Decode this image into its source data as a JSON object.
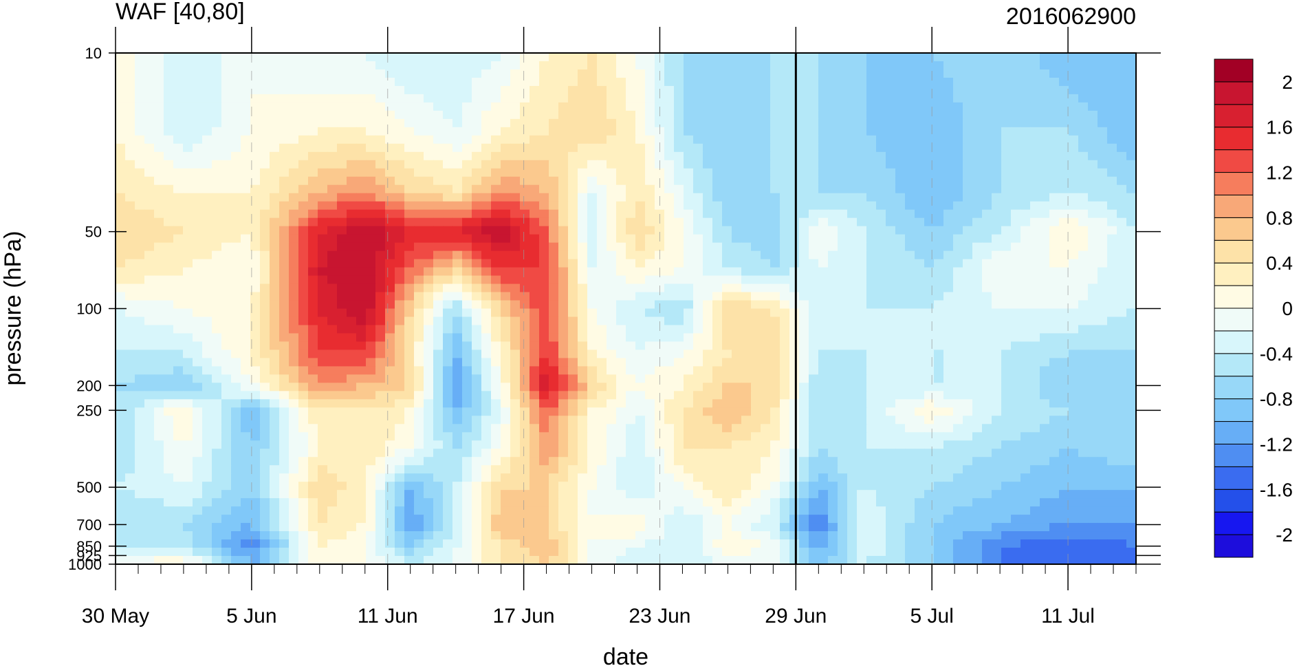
{
  "chart_data": {
    "type": "heatmap",
    "title": "WAF [40,80]",
    "subtitle": "2016062900",
    "xlabel": "date",
    "ylabel": "pressure (hPa)",
    "y_scale": "log",
    "y_reversed": true,
    "xlim": [
      "2016-05-30",
      "2016-07-14"
    ],
    "ylim": [
      1000,
      10
    ],
    "x_tick_labels": [
      "30 May",
      "5 Jun",
      "11 Jun",
      "17 Jun",
      "23 Jun",
      "29 Jun",
      "5 Jul",
      "11 Jul"
    ],
    "x_tick_dates": [
      "2016-05-30",
      "2016-06-05",
      "2016-06-11",
      "2016-06-17",
      "2016-06-23",
      "2016-06-29",
      "2016-07-05",
      "2016-07-11"
    ],
    "y_ticks": [
      10,
      50,
      100,
      200,
      250,
      500,
      700,
      850,
      925,
      1000
    ],
    "y_tick_labels": [
      "10",
      "50",
      "100",
      "200",
      "250",
      "500",
      "700",
      "850",
      "925",
      "1000"
    ],
    "reference_line_date": "2016-06-29",
    "colorbar": {
      "levels": [
        -2.2,
        -2.0,
        -1.8,
        -1.6,
        -1.4,
        -1.2,
        -1.0,
        -0.8,
        -0.6,
        -0.4,
        -0.2,
        0.0,
        0.2,
        0.4,
        0.6,
        0.8,
        1.0,
        1.2,
        1.4,
        1.6,
        1.8,
        2.0,
        2.2
      ],
      "tick_values": [
        2,
        1.6,
        1.2,
        0.8,
        0.4,
        0,
        -0.4,
        -0.8,
        -1.2,
        -1.6,
        -2
      ],
      "tick_labels": [
        "2",
        "1.6",
        "1.2",
        "0.8",
        "0.4",
        "0",
        "-0.4",
        "-0.8",
        "-1.2",
        "-1.6",
        "-2"
      ],
      "colors": [
        "#1d0ddc",
        "#1717f0",
        "#2450ea",
        "#3a6cf0",
        "#4f8ef2",
        "#67aef6",
        "#80c8f9",
        "#98d8f8",
        "#b4e8f8",
        "#d8f6fb",
        "#f0fbf8",
        "#fffbe4",
        "#fff0c0",
        "#fde2a8",
        "#fbc98e",
        "#f8a878",
        "#f67d5d",
        "#f04a44",
        "#e82c30",
        "#d82030",
        "#c81530",
        "#a20025"
      ]
    },
    "field": {
      "x_dates": [
        "2016-05-30",
        "2016-06-02",
        "2016-06-05",
        "2016-06-08",
        "2016-06-10",
        "2016-06-12",
        "2016-06-14",
        "2016-06-16",
        "2016-06-18",
        "2016-06-20",
        "2016-06-22",
        "2016-06-24",
        "2016-06-26",
        "2016-06-28",
        "2016-06-30",
        "2016-07-02",
        "2016-07-05",
        "2016-07-08",
        "2016-07-11",
        "2016-07-14"
      ],
      "p_levels": [
        10,
        20,
        35,
        50,
        70,
        100,
        150,
        200,
        250,
        350,
        500,
        700,
        850,
        1000
      ],
      "values": [
        [
          0.2,
          -0.4,
          0.0,
          -0.2,
          -0.2,
          -0.4,
          -0.4,
          -0.2,
          0.2,
          0.4,
          0.0,
          -0.6,
          -0.6,
          -0.6,
          -0.6,
          -0.8,
          -0.8,
          -0.6,
          -1.0,
          -1.0
        ],
        [
          0.2,
          -0.4,
          0.0,
          0.2,
          0.2,
          0.0,
          -0.2,
          0.2,
          0.4,
          0.6,
          0.2,
          -0.6,
          -0.8,
          -0.6,
          -0.6,
          -0.8,
          -1.0,
          -0.6,
          -0.6,
          -1.0
        ],
        [
          0.4,
          0.2,
          0.2,
          0.8,
          1.0,
          0.6,
          0.4,
          1.0,
          0.8,
          -0.2,
          0.4,
          -0.2,
          -0.8,
          -0.6,
          -0.6,
          -0.6,
          -1.0,
          -0.6,
          -0.4,
          -0.6
        ],
        [
          0.6,
          0.4,
          0.2,
          1.6,
          2.0,
          1.6,
          1.6,
          2.0,
          1.2,
          -0.4,
          0.6,
          0.0,
          -0.6,
          -0.8,
          0.0,
          -0.4,
          -0.8,
          -0.4,
          0.2,
          -0.4
        ],
        [
          0.4,
          0.2,
          0.0,
          1.8,
          2.0,
          1.2,
          0.6,
          1.4,
          1.4,
          -0.2,
          0.2,
          0.0,
          -0.4,
          -0.6,
          -0.2,
          -0.4,
          -0.6,
          0.0,
          0.0,
          -0.4
        ],
        [
          -0.2,
          0.0,
          0.2,
          1.6,
          2.0,
          0.6,
          -0.6,
          0.6,
          1.4,
          0.0,
          -0.4,
          -0.6,
          0.6,
          0.4,
          -0.4,
          -0.4,
          -0.4,
          -0.2,
          -0.2,
          -0.4
        ],
        [
          -0.4,
          -0.4,
          0.2,
          1.4,
          1.4,
          0.4,
          -1.0,
          0.2,
          1.4,
          0.2,
          -0.2,
          0.0,
          0.4,
          0.6,
          -0.4,
          -0.4,
          -0.4,
          -0.4,
          -0.6,
          -0.6
        ],
        [
          -0.6,
          -0.8,
          0.0,
          1.0,
          0.8,
          0.6,
          -1.2,
          0.0,
          1.8,
          0.6,
          0.0,
          0.2,
          0.6,
          0.6,
          -0.6,
          -0.4,
          -0.4,
          -0.4,
          -0.8,
          -0.6
        ],
        [
          -0.6,
          0.2,
          -1.0,
          0.4,
          0.4,
          0.2,
          -1.0,
          -0.2,
          1.2,
          0.2,
          -0.2,
          0.4,
          0.8,
          0.4,
          -0.6,
          -0.4,
          0.2,
          -0.4,
          -0.6,
          -0.6
        ],
        [
          -0.6,
          0.0,
          -0.8,
          0.2,
          0.4,
          0.0,
          -0.6,
          0.0,
          1.0,
          0.2,
          -0.4,
          0.4,
          0.4,
          0.2,
          -0.6,
          -0.4,
          -0.4,
          -0.6,
          -0.8,
          -0.6
        ],
        [
          -0.4,
          -0.2,
          -0.8,
          0.6,
          0.2,
          -1.0,
          -0.4,
          0.6,
          0.6,
          0.0,
          -0.4,
          0.0,
          0.4,
          0.0,
          -1.0,
          -0.4,
          -0.6,
          -0.8,
          -1.0,
          -1.0
        ],
        [
          -0.6,
          -0.6,
          -1.0,
          0.4,
          0.2,
          -1.2,
          -0.4,
          0.8,
          0.6,
          0.0,
          0.2,
          -0.4,
          0.0,
          -0.4,
          -1.4,
          -0.2,
          -0.8,
          -1.0,
          -1.2,
          -1.2
        ],
        [
          -0.4,
          -0.4,
          -1.4,
          0.2,
          0.0,
          -0.8,
          -0.2,
          0.4,
          0.8,
          0.0,
          -0.2,
          -0.4,
          0.2,
          0.0,
          -1.2,
          -0.2,
          -0.8,
          -1.4,
          -1.6,
          -1.4
        ],
        [
          0.0,
          0.2,
          -1.0,
          0.2,
          0.0,
          -0.4,
          -0.2,
          0.4,
          0.6,
          0.0,
          -0.4,
          -0.4,
          -0.2,
          -0.2,
          -0.8,
          -0.4,
          -0.8,
          -1.4,
          -1.6,
          -1.4
        ]
      ]
    }
  }
}
